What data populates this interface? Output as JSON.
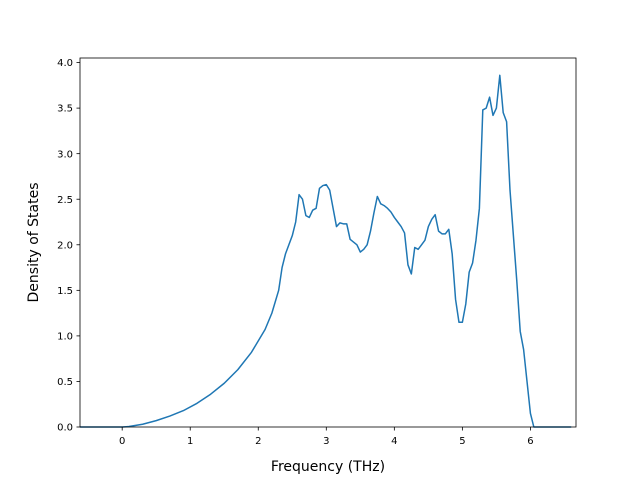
{
  "chart_data": {
    "type": "line",
    "title": "",
    "xlabel": "Frequency (THz)",
    "ylabel": "Density of States",
    "xlim": [
      -0.62,
      6.67
    ],
    "ylim": [
      0.0,
      4.05
    ],
    "xticks": [
      0,
      1,
      2,
      3,
      4,
      5,
      6
    ],
    "xtick_labels": [
      "0",
      "1",
      "2",
      "3",
      "4",
      "5",
      "6"
    ],
    "yticks": [
      0.0,
      0.5,
      1.0,
      1.5,
      2.0,
      2.5,
      3.0,
      3.5,
      4.0
    ],
    "ytick_labels": [
      "0.0",
      "0.5",
      "1.0",
      "1.5",
      "2.0",
      "2.5",
      "3.0",
      "3.5",
      "4.0"
    ],
    "grid": false,
    "legend": "none",
    "series": [
      {
        "color": "#1f77b4",
        "x": [
          -0.62,
          -0.3,
          0.0,
          0.1,
          0.3,
          0.5,
          0.7,
          0.9,
          1.1,
          1.3,
          1.5,
          1.7,
          1.9,
          2.1,
          2.2,
          2.3,
          2.35,
          2.4,
          2.45,
          2.5,
          2.55,
          2.6,
          2.65,
          2.7,
          2.75,
          2.8,
          2.85,
          2.9,
          2.95,
          3.0,
          3.05,
          3.1,
          3.15,
          3.2,
          3.25,
          3.3,
          3.35,
          3.4,
          3.45,
          3.5,
          3.55,
          3.6,
          3.65,
          3.7,
          3.75,
          3.8,
          3.85,
          3.9,
          3.95,
          4.0,
          4.05,
          4.1,
          4.15,
          4.2,
          4.25,
          4.3,
          4.35,
          4.4,
          4.45,
          4.5,
          4.55,
          4.6,
          4.65,
          4.7,
          4.75,
          4.8,
          4.85,
          4.9,
          4.95,
          5.0,
          5.05,
          5.1,
          5.15,
          5.2,
          5.25,
          5.3,
          5.35,
          5.4,
          5.45,
          5.5,
          5.55,
          5.6,
          5.65,
          5.7,
          5.75,
          5.8,
          5.85,
          5.9,
          5.95,
          6.0,
          6.05,
          6.1,
          6.3,
          6.6
        ],
        "values": [
          0.0,
          0.0,
          0.0,
          0.005,
          0.03,
          0.07,
          0.12,
          0.18,
          0.26,
          0.36,
          0.48,
          0.63,
          0.82,
          1.07,
          1.25,
          1.5,
          1.75,
          1.9,
          2.0,
          2.1,
          2.25,
          2.55,
          2.5,
          2.32,
          2.3,
          2.38,
          2.4,
          2.62,
          2.65,
          2.66,
          2.6,
          2.4,
          2.2,
          2.24,
          2.23,
          2.23,
          2.06,
          2.03,
          2.0,
          1.92,
          1.95,
          2.0,
          2.15,
          2.35,
          2.53,
          2.45,
          2.43,
          2.4,
          2.36,
          2.3,
          2.25,
          2.2,
          2.13,
          1.78,
          1.68,
          1.97,
          1.95,
          2.0,
          2.05,
          2.2,
          2.28,
          2.33,
          2.15,
          2.12,
          2.12,
          2.17,
          1.9,
          1.4,
          1.15,
          1.15,
          1.35,
          1.7,
          1.8,
          2.05,
          2.4,
          3.48,
          3.5,
          3.62,
          3.42,
          3.5,
          3.86,
          3.45,
          3.35,
          2.6,
          2.1,
          1.6,
          1.05,
          0.85,
          0.5,
          0.15,
          0.0,
          0.0,
          0.0,
          0.0
        ]
      }
    ]
  }
}
